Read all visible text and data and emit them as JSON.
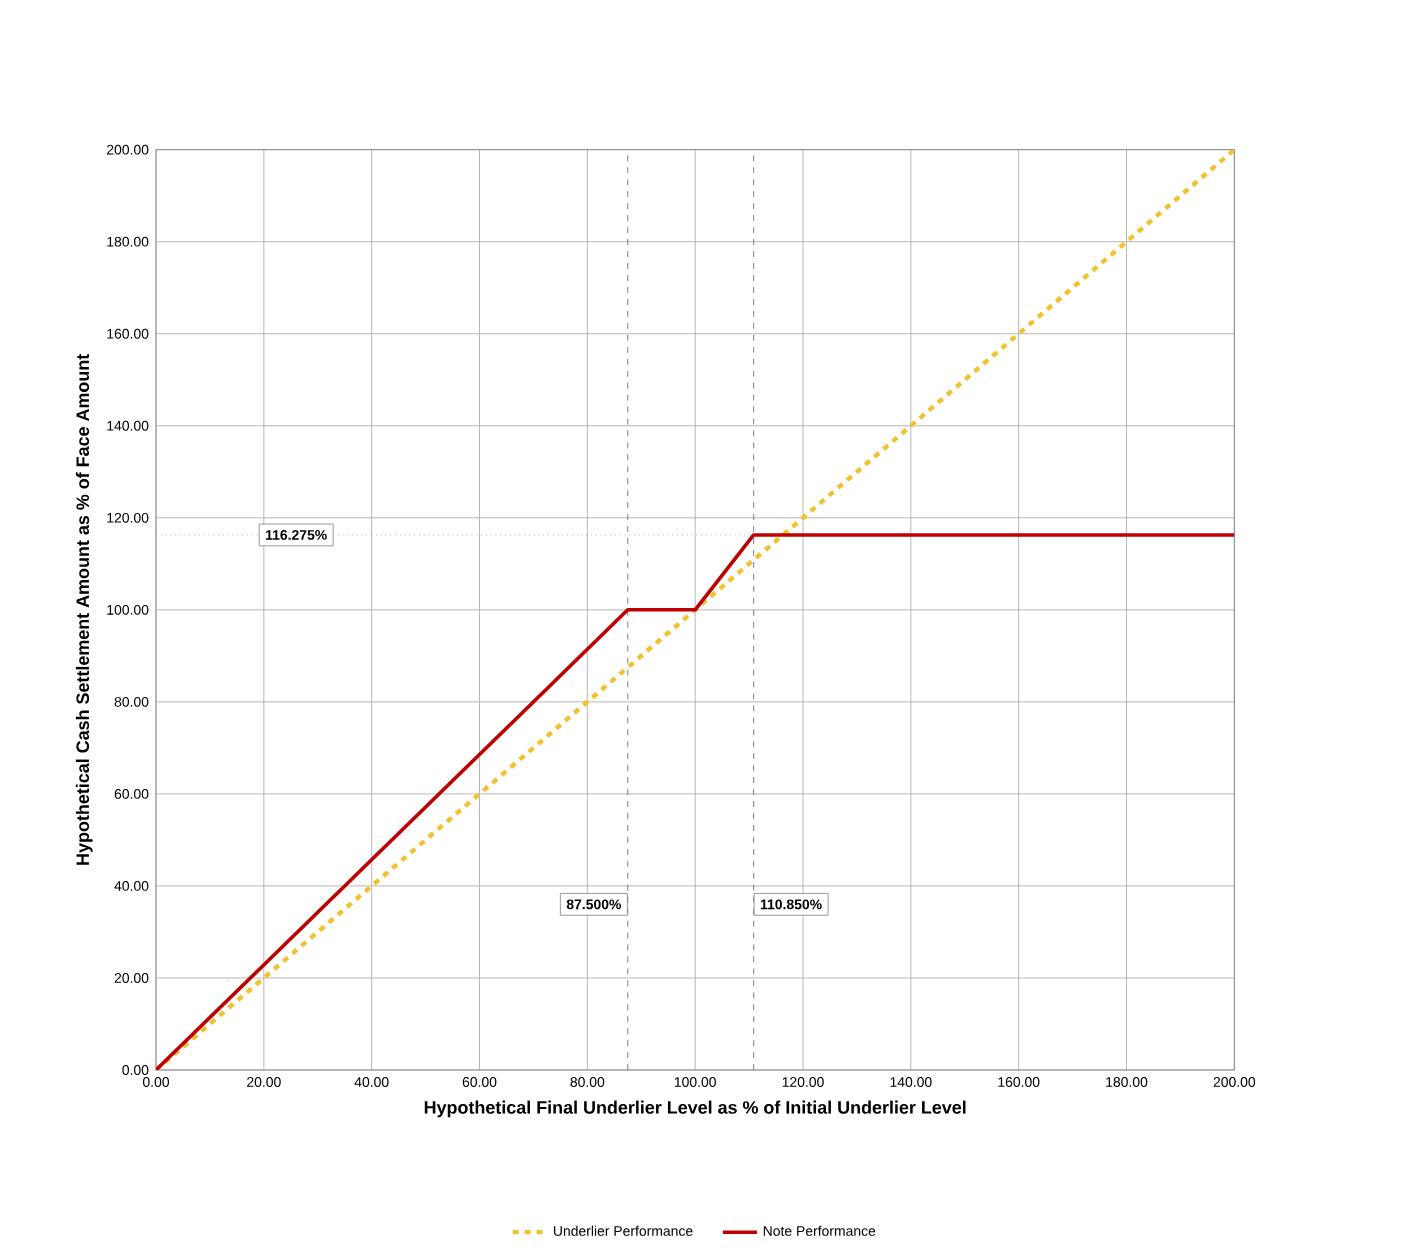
{
  "chart_data": {
    "type": "line",
    "xlabel": "Hypothetical Final Underlier Level as % of Initial Underlier Level",
    "ylabel": "Hypothetical Cash Settlement Amount as % of Face Amount",
    "series": [
      {
        "name": "Underlier Performance",
        "color": "#f2c12e",
        "line_style": "dashed",
        "x": [
          0,
          200
        ],
        "values": [
          0,
          200
        ]
      },
      {
        "name": "Note Performance",
        "color": "#c00000",
        "line_style": "solid",
        "x": [
          0,
          87.5,
          100,
          110.85,
          200
        ],
        "values": [
          0,
          100,
          100,
          116.275,
          116.275
        ]
      }
    ],
    "xlim": [
      0,
      200
    ],
    "ylim": [
      0,
      200
    ],
    "xticks": [
      {
        "value": 0,
        "label": "0.00"
      },
      {
        "value": 20,
        "label": "20.00"
      },
      {
        "value": 40,
        "label": "40.00"
      },
      {
        "value": 60,
        "label": "60.00"
      },
      {
        "value": 80,
        "label": "80.00"
      },
      {
        "value": 100,
        "label": "100.00"
      },
      {
        "value": 120,
        "label": "120.00"
      },
      {
        "value": 140,
        "label": "140.00"
      },
      {
        "value": 160,
        "label": "160.00"
      },
      {
        "value": 180,
        "label": "180.00"
      },
      {
        "value": 200,
        "label": "200.00"
      }
    ],
    "yticks": [
      {
        "value": 0,
        "label": "0.00"
      },
      {
        "value": 20,
        "label": "20.00"
      },
      {
        "value": 40,
        "label": "40.00"
      },
      {
        "value": 60,
        "label": "60.00"
      },
      {
        "value": 80,
        "label": "80.00"
      },
      {
        "value": 100,
        "label": "100.00"
      },
      {
        "value": 120,
        "label": "120.00"
      },
      {
        "value": 140,
        "label": "140.00"
      },
      {
        "value": 160,
        "label": "160.00"
      },
      {
        "value": 180,
        "label": "180.00"
      },
      {
        "value": 200,
        "label": "200.00"
      }
    ],
    "ref_lines": [
      {
        "axis": "y",
        "value": 116.275,
        "label": "116.275%",
        "color": "#808080",
        "line_style": "dotted"
      },
      {
        "axis": "x",
        "value": 87.5,
        "label": "87.500%",
        "color": "#606060",
        "line_style": "dashed"
      },
      {
        "axis": "x",
        "value": 110.85,
        "label": "110.850%",
        "color": "#606060",
        "line_style": "dashed"
      }
    ],
    "grid": true,
    "legend": "bottom"
  }
}
